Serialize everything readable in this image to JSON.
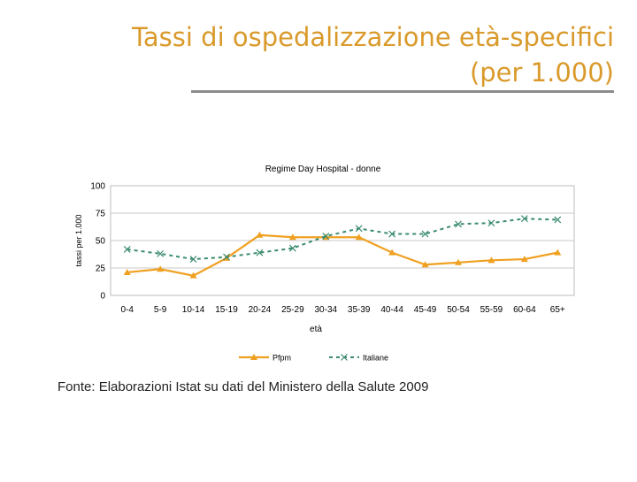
{
  "slide": {
    "title_line1": "Tassi di ospedalizzazione età-specifici",
    "title_line2": "(per 1.000)",
    "source": "Fonte: Elaborazioni Istat su dati del Ministero della Salute 2009"
  },
  "colors": {
    "title": "#d99a2b",
    "pfpm": "#f0a020",
    "italiane": "#3c8c6e",
    "rule": "#8c8c8c",
    "grid": "#c8c8c8"
  },
  "chart_data": {
    "type": "line",
    "title": "Regime Day Hospital - donne",
    "xlabel": "età",
    "ylabel": "tassi per 1.000",
    "ylim": [
      0,
      100
    ],
    "yticks": [
      "0",
      "25",
      "50",
      "75",
      "100"
    ],
    "categories": [
      "0-4",
      "5-9",
      "10-14",
      "15-19",
      "20-24",
      "25-29",
      "30-34",
      "35-39",
      "40-44",
      "45-49",
      "50-54",
      "55-59",
      "60-64",
      "65+"
    ],
    "series": [
      {
        "name": "Pfpm",
        "values": [
          21,
          24,
          18,
          34,
          55,
          53,
          53,
          53,
          39,
          28,
          30,
          32,
          33,
          39
        ]
      },
      {
        "name": "Italiane",
        "values": [
          42,
          38,
          33,
          35,
          39,
          43,
          54,
          61,
          56,
          56,
          65,
          66,
          70,
          69
        ]
      }
    ],
    "legend_position": "bottom"
  }
}
